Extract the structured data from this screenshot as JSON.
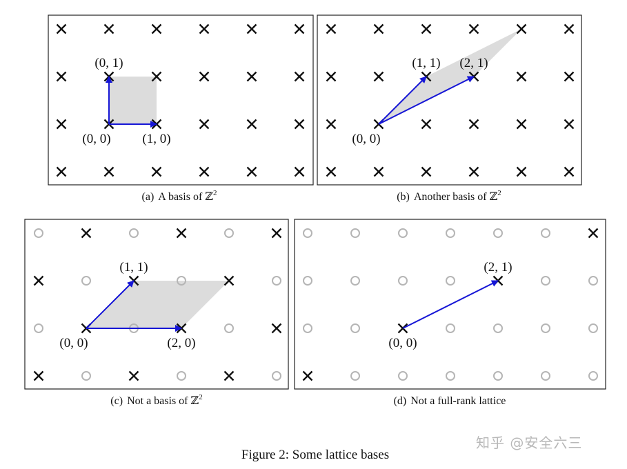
{
  "figure": {
    "caption": "Figure 2: Some lattice bases",
    "watermark": "知乎 @安全六三",
    "colors": {
      "vector": "#1515d6",
      "shade": "#dcdcdc",
      "cross": "#111111",
      "circle": "#b5b5b5"
    },
    "panels": [
      {
        "id": "a",
        "caption_prefix": "(a)",
        "caption_text": "A basis of ",
        "caption_math": "ℤ",
        "caption_sup": "2",
        "lattice": {
          "cols": [
            0,
            1,
            2,
            3,
            4,
            5
          ],
          "rows": [
            -1,
            0,
            1,
            2
          ]
        },
        "origin": [
          1,
          0
        ],
        "points": "all",
        "fundamental_domain": [
          [
            0,
            0
          ],
          [
            1,
            0
          ],
          [
            1,
            1
          ],
          [
            0,
            1
          ]
        ],
        "vectors": [
          [
            1,
            0
          ],
          [
            0,
            1
          ]
        ],
        "labels": [
          {
            "text": "(0, 0)",
            "at": [
              0,
              0
            ],
            "anchor": "below-left"
          },
          {
            "text": "(1, 0)",
            "at": [
              1,
              0
            ],
            "anchor": "below"
          },
          {
            "text": "(0, 1)",
            "at": [
              0,
              1
            ],
            "anchor": "above"
          }
        ]
      },
      {
        "id": "b",
        "caption_prefix": "(b)",
        "caption_text": "Another basis of ",
        "caption_math": "ℤ",
        "caption_sup": "2",
        "lattice": {
          "cols": [
            0,
            1,
            2,
            3,
            4,
            5
          ],
          "rows": [
            -1,
            0,
            1,
            2
          ]
        },
        "origin": [
          1,
          0
        ],
        "points": "all",
        "fundamental_domain": [
          [
            0,
            0
          ],
          [
            2,
            1
          ],
          [
            3,
            2
          ],
          [
            1,
            1
          ]
        ],
        "vectors": [
          [
            1,
            1
          ],
          [
            2,
            1
          ]
        ],
        "labels": [
          {
            "text": "(0, 0)",
            "at": [
              0,
              0
            ],
            "anchor": "below-left"
          },
          {
            "text": "(1, 1)",
            "at": [
              1,
              1
            ],
            "anchor": "above"
          },
          {
            "text": "(2, 1)",
            "at": [
              2,
              1
            ],
            "anchor": "above"
          }
        ]
      },
      {
        "id": "c",
        "caption_prefix": "(c)",
        "caption_text": "Not a basis of ",
        "caption_math": "ℤ",
        "caption_sup": "2",
        "lattice": {
          "cols": [
            0,
            1,
            2,
            3,
            4,
            5
          ],
          "rows": [
            -1,
            0,
            1,
            2
          ]
        },
        "origin": [
          1,
          0
        ],
        "points": "even",
        "fundamental_domain": [
          [
            0,
            0
          ],
          [
            2,
            0
          ],
          [
            3,
            1
          ],
          [
            1,
            1
          ]
        ],
        "vectors": [
          [
            1,
            1
          ],
          [
            2,
            0
          ]
        ],
        "labels": [
          {
            "text": "(0, 0)",
            "at": [
              0,
              0
            ],
            "anchor": "below-left"
          },
          {
            "text": "(1, 1)",
            "at": [
              1,
              1
            ],
            "anchor": "above"
          },
          {
            "text": "(2, 0)",
            "at": [
              2,
              0
            ],
            "anchor": "below"
          }
        ]
      },
      {
        "id": "d",
        "caption_prefix": "(d)",
        "caption_text": "Not a full-rank lattice",
        "caption_math": "",
        "caption_sup": "",
        "lattice": {
          "cols": [
            0,
            1,
            2,
            3,
            4,
            5,
            6
          ],
          "rows": [
            -1,
            0,
            1,
            2
          ]
        },
        "origin": [
          2,
          0
        ],
        "points": "line21",
        "fundamental_domain": [],
        "vectors": [
          [
            2,
            1
          ]
        ],
        "labels": [
          {
            "text": "(0, 0)",
            "at": [
              0,
              0
            ],
            "anchor": "below"
          },
          {
            "text": "(2, 1)",
            "at": [
              2,
              1
            ],
            "anchor": "above"
          }
        ]
      }
    ]
  }
}
